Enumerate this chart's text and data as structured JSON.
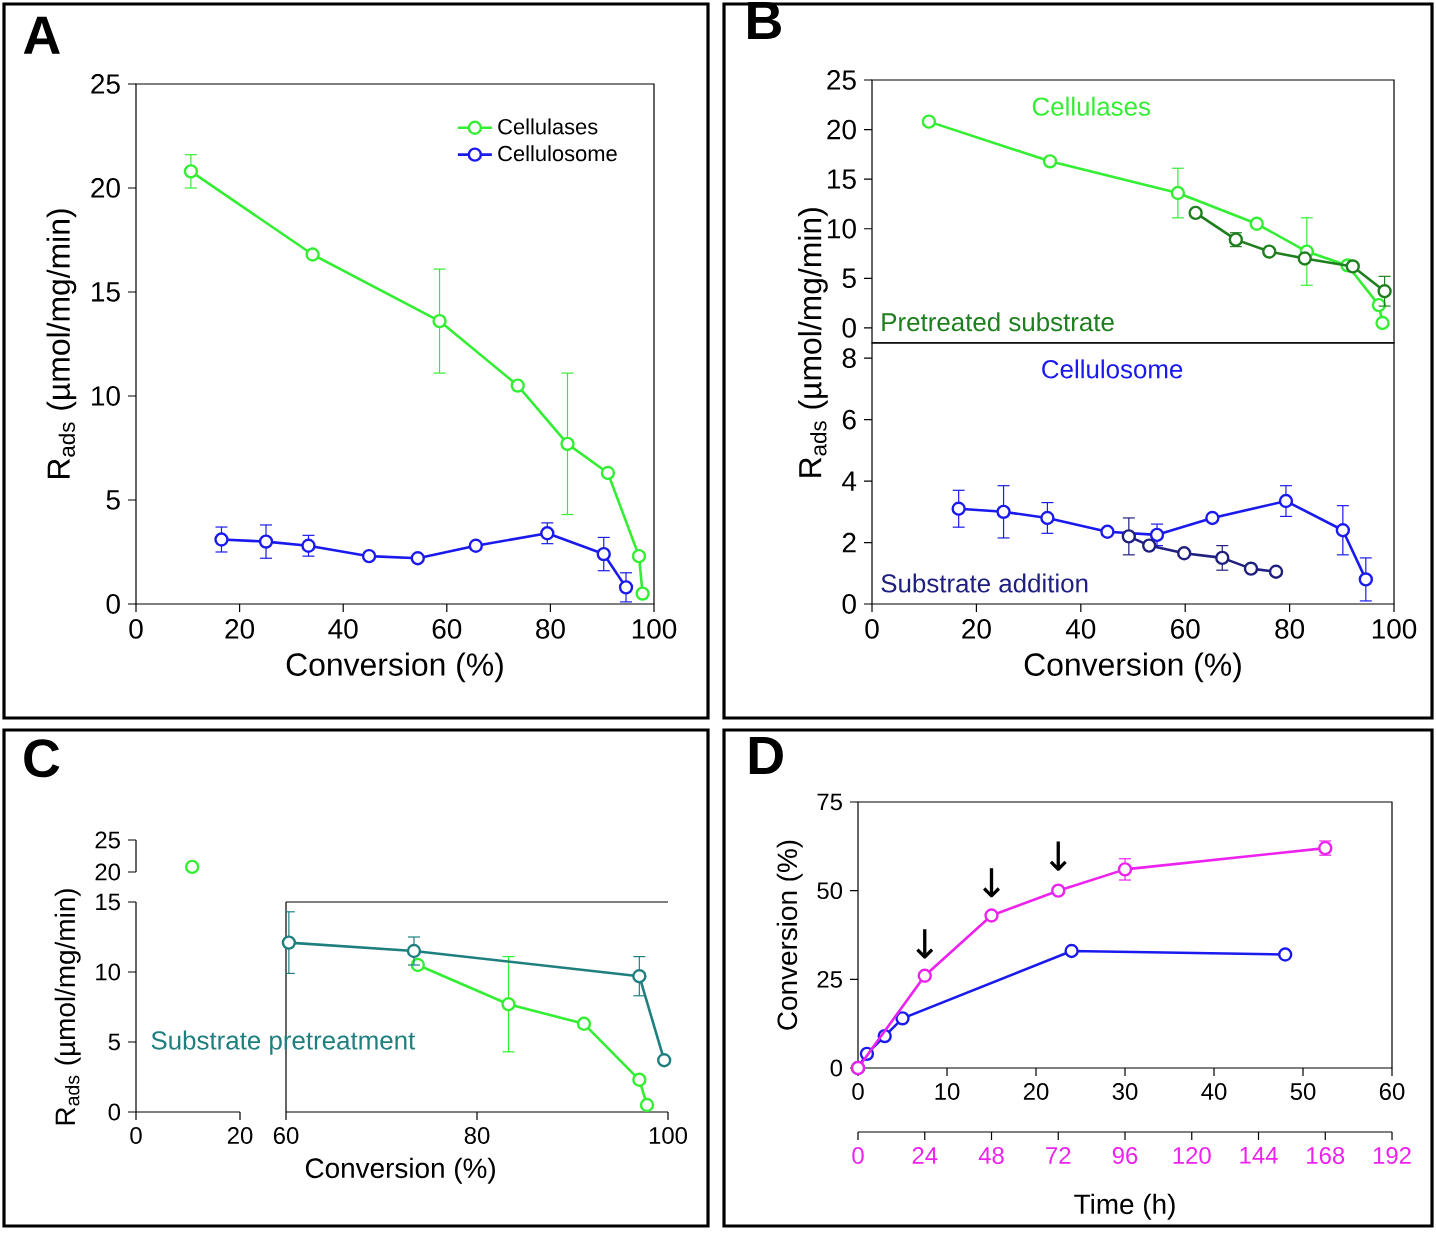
{
  "chart_data": [
    {
      "type": "line",
      "title": "A",
      "xlabel": "Conversion (%)",
      "ylabel": "R$_{ads}$ (µmol/mg/min)",
      "xlim": [
        0,
        100
      ],
      "xticks": [
        0,
        20,
        40,
        60,
        80,
        100
      ],
      "ylim": [
        0,
        25
      ],
      "yticks": [
        0,
        5,
        10,
        15,
        20,
        25
      ],
      "legend": "top right",
      "marker": "circle",
      "series": [
        {
          "name": "Cellulases",
          "color": "#33ee33",
          "x": [
            10.6,
            34.1,
            58.6,
            73.7,
            83.3,
            91.1,
            97.1,
            97.8
          ],
          "values": [
            20.8,
            16.8,
            13.6,
            10.5,
            7.7,
            6.3,
            2.3,
            0.5
          ],
          "errors": [
            0.8,
            null,
            2.5,
            null,
            3.4,
            null,
            null,
            null
          ]
        },
        {
          "name": "Cellulosome",
          "color": "#1a1aee",
          "x": [
            16.5,
            25.1,
            33.3,
            45.0,
            54.4,
            65.6,
            79.4,
            90.3,
            94.6
          ],
          "values": [
            3.1,
            3.0,
            2.8,
            2.3,
            2.2,
            2.8,
            3.4,
            2.4,
            0.8
          ],
          "errors": [
            0.6,
            0.8,
            0.5,
            null,
            null,
            null,
            0.5,
            0.8,
            0.7
          ]
        }
      ]
    },
    {
      "type": "line",
      "title": "B",
      "xlim": [
        0,
        100
      ],
      "ylim": [
        -1.5,
        25
      ],
      "yticks": [
        0,
        5,
        10,
        15,
        20,
        25
      ],
      "tick_labels": "y",
      "marker": "circle",
      "series": [
        {
          "name": "Cellulases",
          "color": "#33ee33",
          "x": [
            10.9,
            34.1,
            58.6,
            73.7,
            83.3,
            91.1,
            97.1,
            97.8
          ],
          "values": [
            20.8,
            16.8,
            13.6,
            10.5,
            7.7,
            6.3,
            2.3,
            0.5
          ],
          "errors": [
            null,
            null,
            2.5,
            null,
            3.4,
            null,
            null,
            null
          ]
        },
        {
          "name": "Pretreated substrate",
          "color": "#1f7f1f",
          "x": [
            62.0,
            69.7,
            76.1,
            82.9,
            92.1,
            98.2
          ],
          "values": [
            11.6,
            8.9,
            7.7,
            7.0,
            6.2,
            3.7
          ],
          "errors": [
            null,
            0.7,
            null,
            null,
            null,
            1.5
          ]
        }
      ]
    },
    {
      "type": "line",
      "xlabel": "Conversion (%)",
      "ylabel": "R$_{ads}$ (µmol/mg/min)",
      "xlim": [
        0,
        100
      ],
      "xticks": [
        0,
        20,
        40,
        60,
        80,
        100
      ],
      "ylim": [
        0,
        8.5
      ],
      "yticks": [
        0,
        2,
        4,
        6,
        8
      ],
      "marker": "circle",
      "series": [
        {
          "name": "Cellulosome",
          "color": "#1a1aee",
          "x": [
            16.6,
            25.2,
            33.6,
            45.1,
            54.6,
            65.2,
            79.3,
            90.2,
            94.6
          ],
          "values": [
            3.1,
            3.0,
            2.8,
            2.35,
            2.25,
            2.8,
            3.35,
            2.4,
            0.8
          ],
          "errors": [
            0.6,
            0.85,
            0.5,
            null,
            0.35,
            null,
            0.5,
            0.8,
            0.7
          ]
        },
        {
          "name": "Substrate addition",
          "color": "#1f1f80",
          "x": [
            49.2,
            53.1,
            59.8,
            67.1,
            72.6,
            77.4
          ],
          "values": [
            2.2,
            1.9,
            1.65,
            1.5,
            1.15,
            1.05
          ],
          "errors": [
            0.6,
            null,
            null,
            0.4,
            null,
            null
          ]
        }
      ]
    },
    {
      "type": "line",
      "title": "C",
      "xlim": [
        0,
        20
      ],
      "ylim": [
        20,
        25
      ],
      "yticks": [
        20,
        25
      ],
      "tick_labels": "y",
      "marker": "circle",
      "series": [
        {
          "color": "#33ee33",
          "x": [
            10.8
          ],
          "values": [
            20.8
          ]
        }
      ]
    },
    {
      "type": "line",
      "ylabel": "R$_{ads}$ (µmol/mg/min)",
      "xlim": [
        0,
        20
      ],
      "xticks": [
        0,
        20
      ],
      "ylim": [
        0,
        15
      ],
      "yticks": [
        0,
        5,
        10,
        15
      ]
    },
    {
      "type": "line",
      "xlabel": "Conversion (%)",
      "xlim": [
        60,
        100
      ],
      "xticks": [
        60,
        80,
        100
      ],
      "ylim": [
        0,
        15
      ],
      "tick_labels": "x",
      "marker": "circle",
      "series": [
        {
          "color": "#33ee33",
          "x": [
            73.8,
            83.3,
            91.2,
            97.0,
            97.8
          ],
          "values": [
            10.5,
            7.7,
            6.3,
            2.3,
            0.5
          ],
          "errors": [
            null,
            3.4,
            null,
            null,
            null
          ]
        },
        {
          "name": "Substrate pretreatment",
          "color": "#1f7f7f",
          "x": [
            60.3,
            73.4,
            97.0,
            99.6
          ],
          "values": [
            12.1,
            11.5,
            9.7,
            3.7
          ],
          "errors": [
            2.2,
            1.0,
            1.4,
            null
          ]
        }
      ]
    },
    {
      "type": "line",
      "title": "D",
      "xlabel": "Time (h)",
      "ylabel": "Conversion (%)",
      "xlim": [
        0,
        60
      ],
      "xticks": [
        0,
        10,
        20,
        30,
        40,
        50,
        60
      ],
      "x2lim": [
        0,
        192
      ],
      "x2ticks": [
        0,
        24,
        48,
        72,
        96,
        120,
        144,
        168,
        192
      ],
      "ylim": [
        0,
        75
      ],
      "yticks": [
        0,
        25,
        50,
        75
      ],
      "marker": "circle",
      "annotations": [
        "↓",
        "↓",
        "↓"
      ],
      "series": [
        {
          "color": "#1a1aee",
          "x": [
            0,
            1,
            3,
            5,
            24,
            48
          ],
          "values": [
            0,
            4,
            9,
            14,
            33,
            32
          ]
        },
        {
          "color": "#ee22ee",
          "axis": "x2",
          "x": [
            0,
            24,
            48,
            72,
            96,
            168
          ],
          "values": [
            0,
            26,
            43,
            50,
            56,
            62
          ],
          "errors": [
            null,
            null,
            null,
            null,
            3,
            2
          ]
        }
      ]
    }
  ]
}
